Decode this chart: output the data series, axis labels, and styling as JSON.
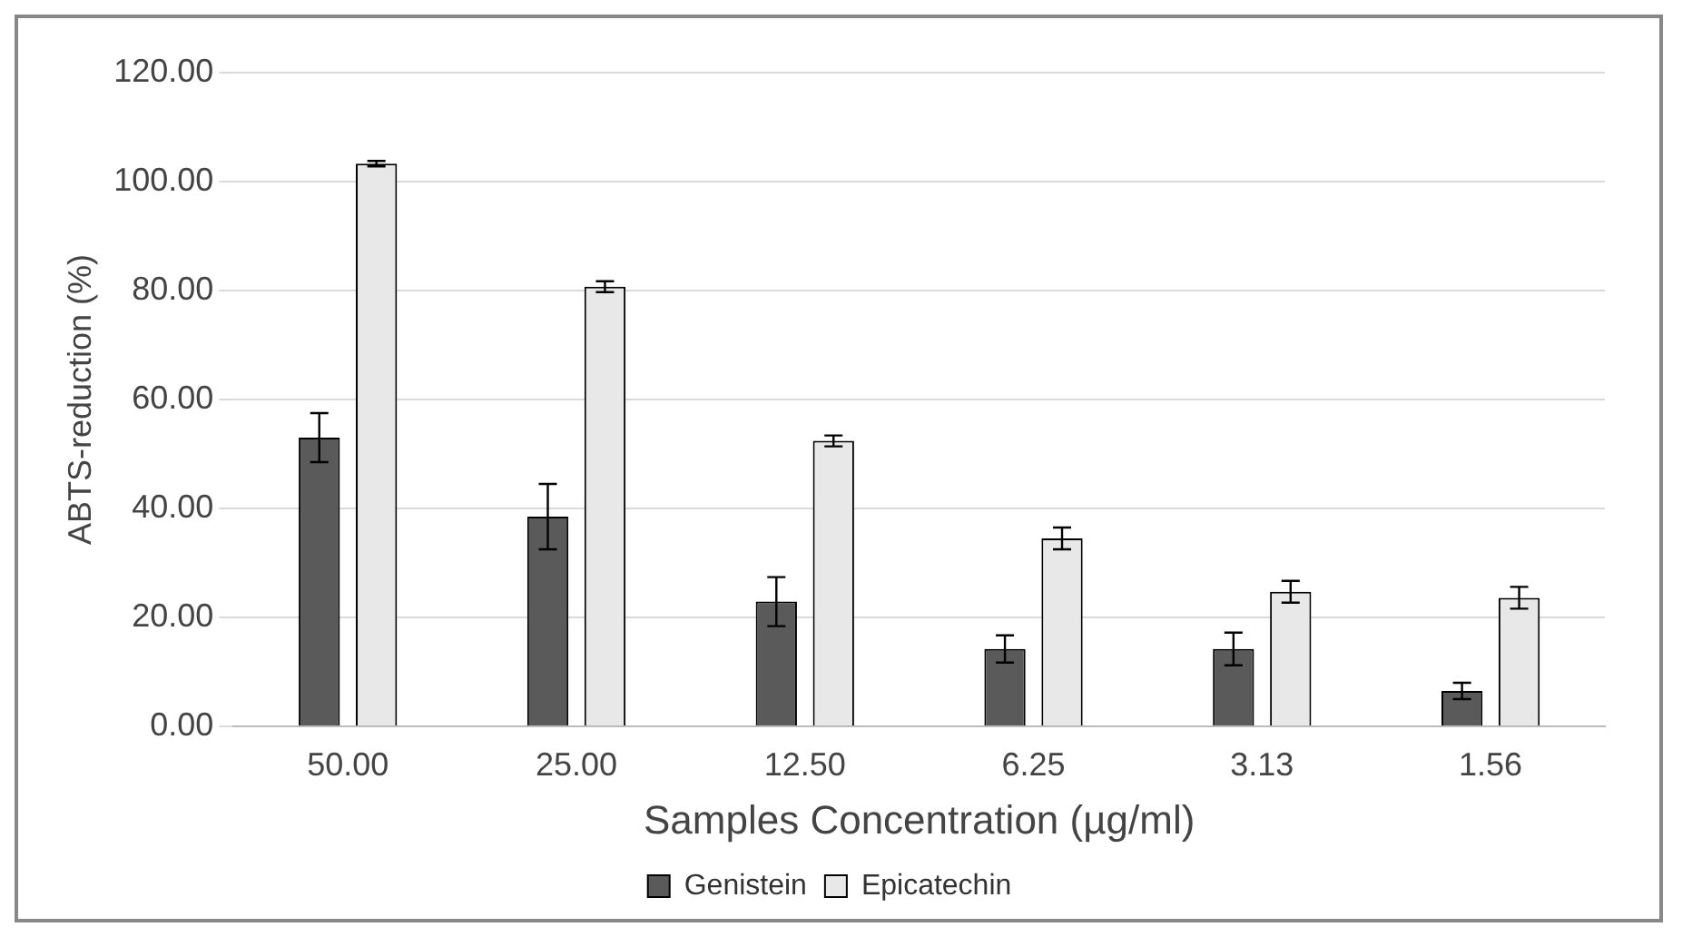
{
  "chart_data": {
    "type": "bar",
    "xlabel": "Samples Concentration (µg/ml)",
    "ylabel": "ABTS-reduction (%)",
    "categories": [
      "50.00",
      "25.00",
      "12.50",
      "6.25",
      "3.13",
      "1.56"
    ],
    "series": [
      {
        "name": "Genistein",
        "color": "#5a5a5a",
        "values": [
          53,
          38.5,
          22.9,
          14.2,
          14.2,
          6.5
        ],
        "errors": [
          4.5,
          6,
          4.5,
          2.5,
          3,
          1.5
        ]
      },
      {
        "name": "Epicatechin",
        "color": "#e8e8e8",
        "values": [
          103.3,
          80.7,
          52.4,
          34.5,
          24.7,
          23.6
        ],
        "errors": [
          0.5,
          1,
          1,
          2,
          2,
          2
        ]
      }
    ],
    "ylim": [
      0,
      120
    ],
    "yticks": [
      {
        "value": 0,
        "label": "0.00"
      },
      {
        "value": 20,
        "label": "20.00"
      },
      {
        "value": 40,
        "label": "40.00"
      },
      {
        "value": 60,
        "label": "60.00"
      },
      {
        "value": 80,
        "label": "80.00"
      },
      {
        "value": 100,
        "label": "100.00"
      },
      {
        "value": 120,
        "label": "120.00"
      }
    ],
    "grid": "y",
    "legend": "bottom"
  }
}
